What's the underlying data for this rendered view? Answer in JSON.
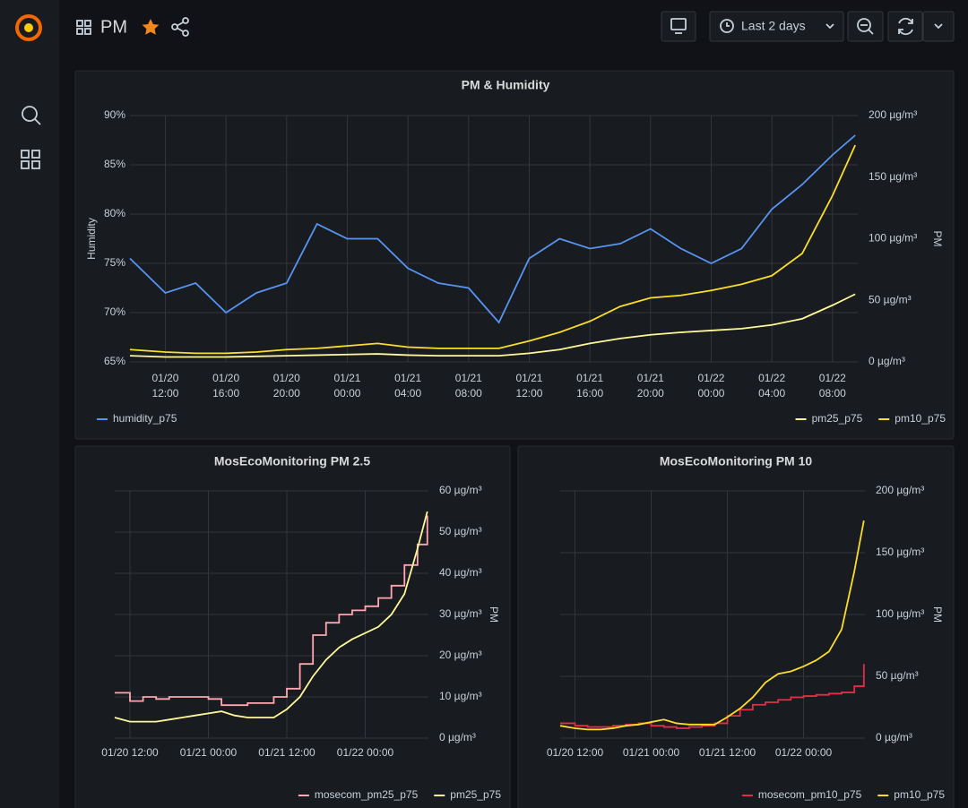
{
  "header": {
    "title": "PM",
    "time_range": "Last 2 days"
  },
  "chart_data": [
    {
      "type": "line",
      "title": "PM & Humidity",
      "ylabel": "Humidity",
      "y2label": "PM",
      "grid": true,
      "x": [
        "01/20 09:40",
        "01/20 12:00",
        "01/20 14:00",
        "01/20 16:00",
        "01/20 18:00",
        "01/20 20:00",
        "01/20 22:00",
        "01/21 00:00",
        "01/21 02:00",
        "01/21 04:00",
        "01/21 06:00",
        "01/21 08:00",
        "01/21 10:00",
        "01/21 12:00",
        "01/21 14:00",
        "01/21 16:00",
        "01/21 18:00",
        "01/21 20:00",
        "01/21 22:00",
        "01/22 00:00",
        "01/22 02:00",
        "01/22 04:00",
        "01/22 06:00",
        "01/22 08:00",
        "01/22 09:30"
      ],
      "xlim": [
        "01/20 09:40",
        "01/22 09:40"
      ],
      "xticks": [
        "01/20 12:00",
        "01/20 16:00",
        "01/20 20:00",
        "01/21 00:00",
        "01/21 04:00",
        "01/21 08:00",
        "01/21 12:00",
        "01/21 16:00",
        "01/21 20:00",
        "01/22 00:00",
        "01/22 04:00",
        "01/22 08:00"
      ],
      "ylim": [
        65,
        90
      ],
      "yticks": [
        {
          "value": 65,
          "label": "65%"
        },
        {
          "value": 70,
          "label": "70%"
        },
        {
          "value": 75,
          "label": "75%"
        },
        {
          "value": 80,
          "label": "80%"
        },
        {
          "value": 85,
          "label": "85%"
        },
        {
          "value": 90,
          "label": "90%"
        }
      ],
      "y2lim": [
        0,
        200
      ],
      "y2ticks": [
        {
          "value": 0,
          "label": "0 µg/m³"
        },
        {
          "value": 50,
          "label": "50 µg/m³"
        },
        {
          "value": 100,
          "label": "100 µg/m³"
        },
        {
          "value": 150,
          "label": "150 µg/m³"
        },
        {
          "value": 200,
          "label": "200 µg/m³"
        }
      ],
      "series": [
        {
          "name": "humidity_p75",
          "color": "#5794f2",
          "axis": "y",
          "values": [
            75.5,
            72,
            73,
            70,
            72,
            73,
            79,
            77.5,
            77.5,
            74.5,
            73,
            72.5,
            69,
            75.5,
            77.5,
            76.5,
            77,
            78.5,
            76.5,
            75,
            76.5,
            80.5,
            83,
            86,
            88
          ]
        },
        {
          "name": "pm25_p75",
          "color": "#fff899",
          "axis": "y2",
          "values": [
            5,
            4,
            4,
            4,
            4.5,
            5,
            5.5,
            6,
            6.5,
            5.5,
            5,
            5,
            5,
            7,
            10,
            15,
            19,
            22,
            24,
            25.5,
            27,
            30,
            35,
            46,
            55
          ]
        },
        {
          "name": "pm10_p75",
          "color": "#fade2a",
          "axis": "y2",
          "values": [
            10,
            8,
            7,
            7,
            8,
            10,
            11,
            13,
            15,
            12,
            11,
            11,
            11,
            17,
            24,
            33,
            45,
            52,
            54,
            58,
            63,
            70,
            88,
            135,
            176
          ]
        }
      ]
    },
    {
      "type": "line",
      "title": "MosEcoMonitoring PM 2.5",
      "y2label": "PM",
      "grid": true,
      "x": [
        "01/20 09:40",
        "01/20 12:00",
        "01/20 14:00",
        "01/20 16:00",
        "01/20 18:00",
        "01/20 20:00",
        "01/20 22:00",
        "01/21 00:00",
        "01/21 02:00",
        "01/21 04:00",
        "01/21 06:00",
        "01/21 08:00",
        "01/21 10:00",
        "01/21 12:00",
        "01/21 14:00",
        "01/21 16:00",
        "01/21 18:00",
        "01/21 20:00",
        "01/21 22:00",
        "01/22 00:00",
        "01/22 02:00",
        "01/22 04:00",
        "01/22 06:00",
        "01/22 08:00",
        "01/22 09:30"
      ],
      "xlim": [
        "01/20 09:40",
        "01/22 09:40"
      ],
      "xticks": [
        "01/20 12:00",
        "01/21 00:00",
        "01/21 12:00",
        "01/22 00:00"
      ],
      "y2lim": [
        0,
        60
      ],
      "y2ticks": [
        {
          "value": 0,
          "label": "0 µg/m³"
        },
        {
          "value": 10,
          "label": "10 µg/m³"
        },
        {
          "value": 20,
          "label": "20 µg/m³"
        },
        {
          "value": 30,
          "label": "30 µg/m³"
        },
        {
          "value": 40,
          "label": "40 µg/m³"
        },
        {
          "value": 50,
          "label": "50 µg/m³"
        },
        {
          "value": 60,
          "label": "60 µg/m³"
        }
      ],
      "series": [
        {
          "name": "mosecom_pm25_p75",
          "color": "#ffa6b0",
          "axis": "y2",
          "step": true,
          "values": [
            11,
            9,
            10,
            9.5,
            10,
            10,
            10,
            9.5,
            8,
            8,
            8.5,
            8.5,
            10,
            12,
            18,
            25,
            28,
            30,
            31,
            32,
            34,
            37,
            42,
            47,
            54
          ]
        },
        {
          "name": "pm25_p75",
          "color": "#fff899",
          "axis": "y2",
          "values": [
            5,
            4,
            4,
            4,
            4.5,
            5,
            5.5,
            6,
            6.5,
            5.5,
            5,
            5,
            5,
            7,
            10,
            15,
            19,
            22,
            24,
            25.5,
            27,
            30,
            35,
            46,
            55
          ]
        }
      ]
    },
    {
      "type": "line",
      "title": "MosEcoMonitoring PM 10",
      "y2label": "PM",
      "grid": true,
      "x": [
        "01/20 09:40",
        "01/20 12:00",
        "01/20 14:00",
        "01/20 16:00",
        "01/20 18:00",
        "01/20 20:00",
        "01/20 22:00",
        "01/21 00:00",
        "01/21 02:00",
        "01/21 04:00",
        "01/21 06:00",
        "01/21 08:00",
        "01/21 10:00",
        "01/21 12:00",
        "01/21 14:00",
        "01/21 16:00",
        "01/21 18:00",
        "01/21 20:00",
        "01/21 22:00",
        "01/22 00:00",
        "01/22 02:00",
        "01/22 04:00",
        "01/22 06:00",
        "01/22 08:00",
        "01/22 09:30"
      ],
      "xlim": [
        "01/20 09:40",
        "01/22 09:40"
      ],
      "xticks": [
        "01/20 12:00",
        "01/21 00:00",
        "01/21 12:00",
        "01/22 00:00"
      ],
      "y2lim": [
        0,
        200
      ],
      "y2ticks": [
        {
          "value": 0,
          "label": "0 µg/m³"
        },
        {
          "value": 50,
          "label": "50 µg/m³"
        },
        {
          "value": 100,
          "label": "100 µg/m³"
        },
        {
          "value": 150,
          "label": "150 µg/m³"
        },
        {
          "value": 200,
          "label": "200 µg/m³"
        }
      ],
      "series": [
        {
          "name": "mosecom_pm10_p75",
          "color": "#e02f44",
          "axis": "y2",
          "step": true,
          "values": [
            12,
            10,
            9,
            9,
            10,
            11,
            12,
            10,
            9,
            8,
            9,
            10,
            12,
            18,
            23,
            27,
            29,
            31,
            33,
            34,
            35,
            36,
            37,
            42,
            60
          ]
        },
        {
          "name": "pm10_p75",
          "color": "#fade2a",
          "axis": "y2",
          "values": [
            10,
            8,
            7,
            7,
            8,
            10,
            11,
            13,
            15,
            12,
            11,
            11,
            11,
            17,
            24,
            33,
            45,
            52,
            54,
            58,
            63,
            70,
            88,
            135,
            176
          ]
        }
      ]
    }
  ]
}
